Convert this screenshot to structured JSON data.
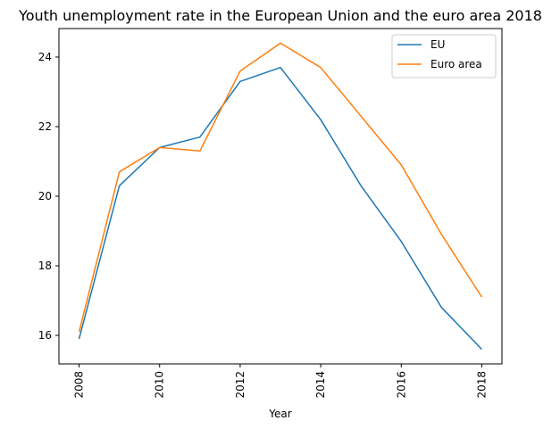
{
  "chart_data": {
    "type": "line",
    "title": "Youth unemployment rate in the European Union and the euro area 2018",
    "xlabel": "Year",
    "ylabel": "",
    "x": [
      2008,
      2009,
      2010,
      2011,
      2012,
      2013,
      2014,
      2015,
      2016,
      2017,
      2018
    ],
    "series": [
      {
        "name": "EU",
        "color": "#1f77b4",
        "values": [
          15.9,
          20.3,
          21.4,
          21.7,
          23.3,
          23.7,
          22.2,
          20.3,
          18.7,
          16.8,
          15.6
        ]
      },
      {
        "name": "Euro area",
        "color": "#ff7f0e",
        "values": [
          16.1,
          20.7,
          21.4,
          21.3,
          23.6,
          24.4,
          23.7,
          22.3,
          20.9,
          18.9,
          17.1
        ]
      }
    ],
    "xticks": [
      "2008",
      "2010",
      "2012",
      "2014",
      "2016",
      "2018"
    ],
    "yticks": [
      "16",
      "18",
      "20",
      "22",
      "24"
    ],
    "xlim": [
      2007.5,
      2018.5
    ],
    "ylim": [
      15.18,
      24.82
    ],
    "grid": false,
    "legend_position": "upper right",
    "xtick_rotation": "vertical"
  }
}
